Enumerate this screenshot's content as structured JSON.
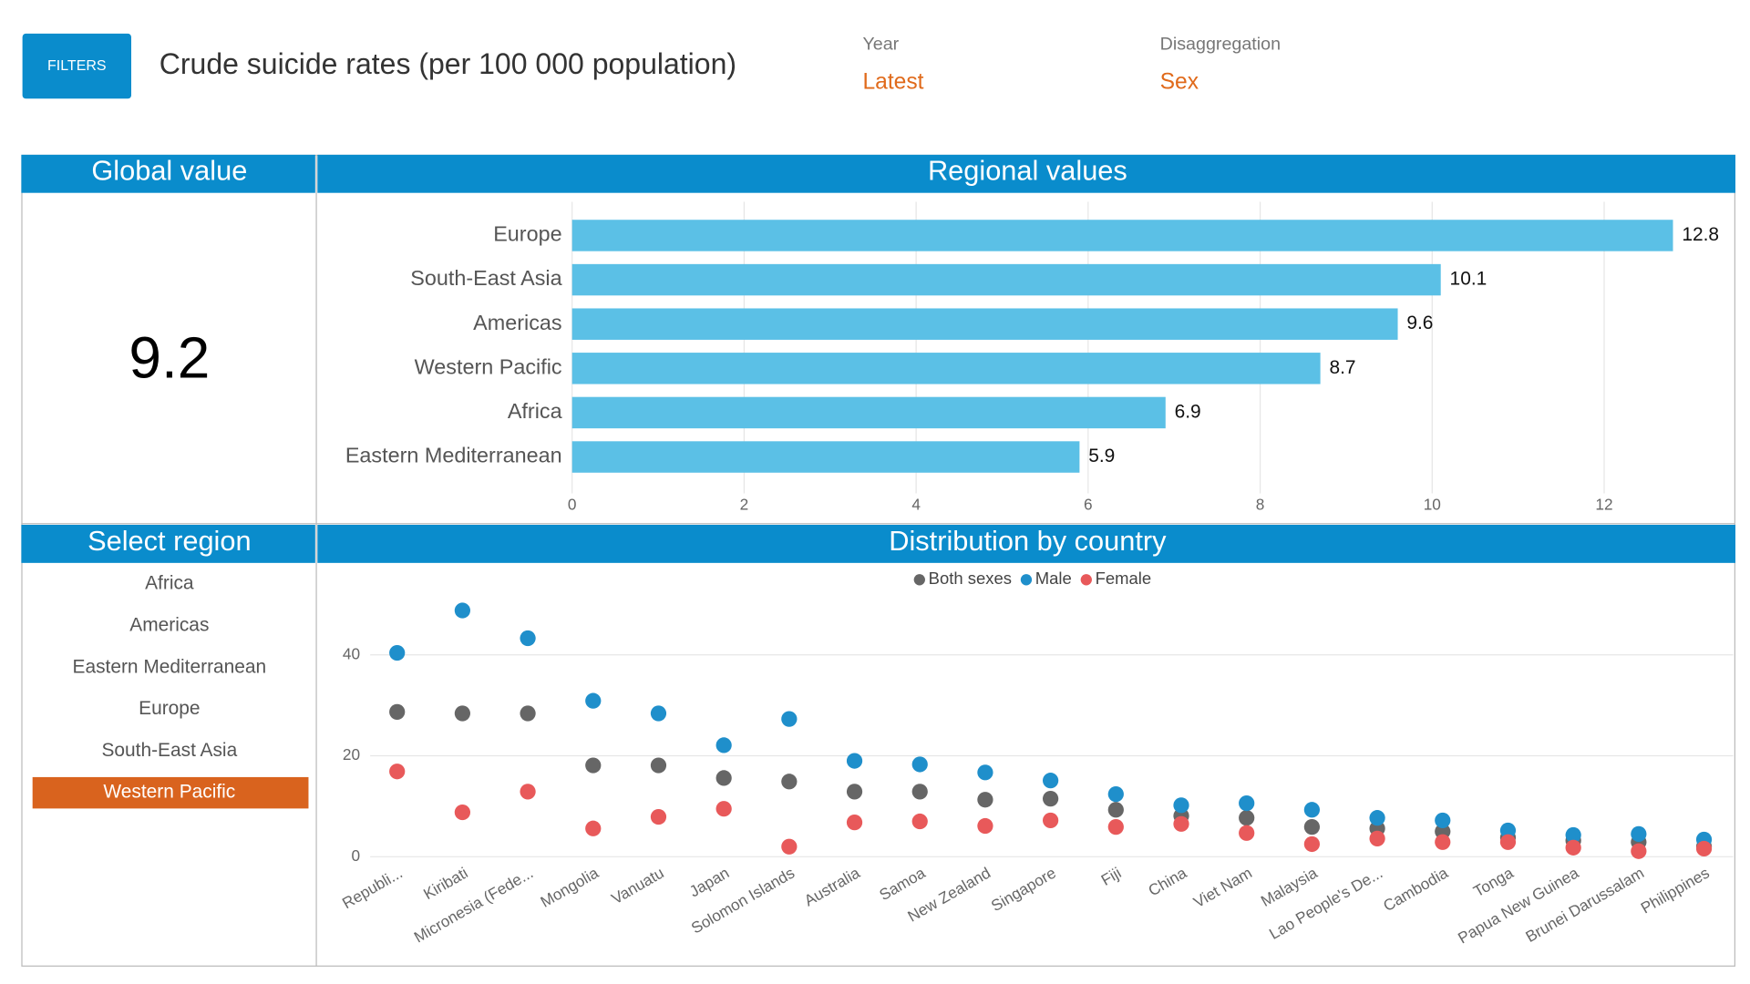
{
  "header": {
    "button": "FILTERS",
    "title": "Crude suicide rates (per 100 000 population)",
    "filters": [
      {
        "label": "Year",
        "value": "Latest"
      },
      {
        "label": "Disaggregation",
        "value": "Sex"
      }
    ]
  },
  "global_panel": {
    "title": "Global value",
    "value": 9.2
  },
  "region_list": {
    "title": "Select region",
    "items": [
      "Africa",
      "Americas",
      "Eastern Mediterranean",
      "Europe",
      "South-East Asia",
      "Western Pacific"
    ],
    "selected": 5
  },
  "chart_data": [
    {
      "type": "bar",
      "title": "Regional values",
      "orientation": "horizontal",
      "categories": [
        "Europe",
        "South-East Asia",
        "Americas",
        "Western Pacific",
        "Africa",
        "Eastern Mediterranean"
      ],
      "values": [
        12.8,
        10.1,
        9.6,
        8.7,
        6.9,
        5.9
      ],
      "color": "#5bc0e6",
      "xlim": [
        0,
        13.5
      ],
      "xticks": [
        0,
        2,
        4,
        6,
        8,
        10,
        12
      ],
      "grid": true
    },
    {
      "type": "scatter",
      "title": "Distribution by country",
      "categories": [
        "Republi...",
        "Kiribati",
        "Micronesia (Fede...",
        "Mongolia",
        "Vanuatu",
        "Japan",
        "Solomon Islands",
        "Australia",
        "Samoa",
        "New Zealand",
        "Singapore",
        "Fiji",
        "China",
        "Viet Nam",
        "Malaysia",
        "Lao People's De...",
        "Cambodia",
        "Tonga",
        "Papua New Guinea",
        "Brunei Darussalam",
        "Philippines"
      ],
      "series": [
        {
          "name": "Both sexes",
          "color": "#666666",
          "values": [
            28.7,
            28.4,
            28.4,
            18.1,
            18.1,
            15.6,
            14.9,
            12.9,
            12.9,
            11.3,
            11.5,
            9.3,
            8.1,
            7.7,
            5.9,
            5.6,
            5.0,
            3.8,
            3.2,
            2.9,
            2.0
          ]
        },
        {
          "name": "Male",
          "color": "#1f8fcb",
          "values": [
            40.4,
            48.8,
            43.3,
            30.9,
            28.4,
            22.1,
            27.3,
            19.0,
            18.3,
            16.7,
            15.1,
            12.4,
            10.2,
            10.6,
            9.3,
            7.7,
            7.2,
            5.2,
            4.3,
            4.5,
            3.4
          ]
        },
        {
          "name": "Female",
          "color": "#e8595a",
          "values": [
            16.9,
            8.8,
            12.9,
            5.6,
            7.9,
            9.5,
            2.0,
            6.8,
            7.0,
            6.1,
            7.2,
            5.9,
            6.5,
            4.7,
            2.5,
            3.6,
            2.9,
            2.9,
            1.8,
            1.1,
            1.6
          ]
        }
      ],
      "ylim": [
        0,
        52
      ],
      "yticks": [
        0,
        20,
        40
      ],
      "grid": true,
      "legend": "top"
    }
  ]
}
